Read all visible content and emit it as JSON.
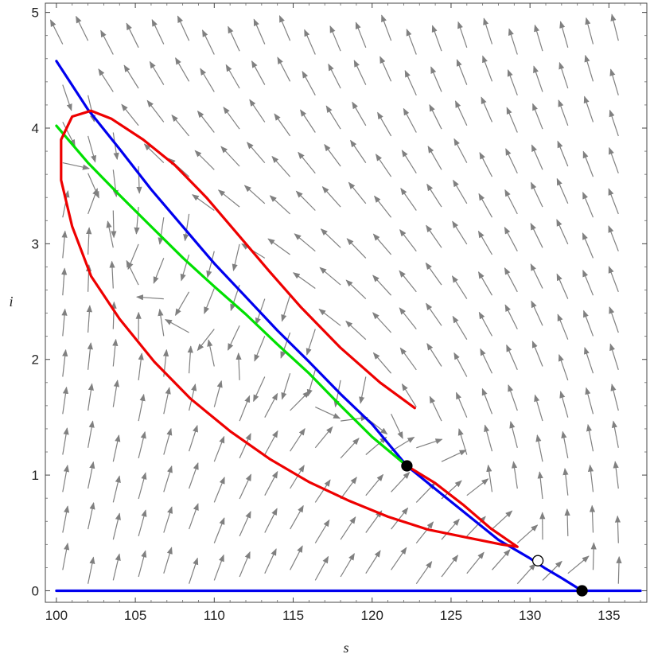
{
  "chart_data": {
    "type": "line",
    "title": "",
    "xlabel": "s",
    "ylabel": "i",
    "xlim": [
      99.3,
      137.4
    ],
    "ylim": [
      -0.1,
      5.08
    ],
    "x_ticks": [
      100,
      105,
      110,
      115,
      120,
      125,
      130,
      135
    ],
    "x_tick_labels": [
      "100",
      "105",
      "110",
      "115",
      "120",
      "125",
      "130",
      "135"
    ],
    "y_ticks": [
      0,
      1,
      2,
      3,
      4,
      5
    ],
    "y_tick_labels": [
      "0",
      "1",
      "2",
      "3",
      "4",
      "5"
    ],
    "grid": false,
    "legend": "none",
    "series": [
      {
        "kind": "curve",
        "color": "#0000ee",
        "points": [
          [
            100,
            4.58
          ],
          [
            102,
            4.16
          ],
          [
            104,
            3.82
          ],
          [
            106,
            3.47
          ],
          [
            108,
            3.15
          ],
          [
            110,
            2.83
          ],
          [
            112,
            2.54
          ],
          [
            114,
            2.25
          ],
          [
            116,
            1.98
          ],
          [
            118,
            1.7
          ],
          [
            120,
            1.44
          ],
          [
            122.2,
            1.08
          ],
          [
            124,
            0.88
          ],
          [
            126,
            0.66
          ],
          [
            128,
            0.44
          ],
          [
            130,
            0.28
          ],
          [
            131,
            0.19
          ],
          [
            132,
            0.11
          ],
          [
            133.3,
            0.0
          ]
        ]
      },
      {
        "kind": "curve",
        "color": "#0000ee",
        "points": [
          [
            100,
            0
          ],
          [
            137,
            0
          ]
        ]
      },
      {
        "kind": "curve",
        "color": "#00e000",
        "points": [
          [
            100,
            4.02
          ],
          [
            102,
            3.7
          ],
          [
            104,
            3.42
          ],
          [
            106,
            3.15
          ],
          [
            108,
            2.88
          ],
          [
            110,
            2.63
          ],
          [
            112,
            2.39
          ],
          [
            114,
            2.13
          ],
          [
            116,
            1.88
          ],
          [
            118,
            1.6
          ],
          [
            120,
            1.33
          ],
          [
            122.2,
            1.08
          ]
        ]
      },
      {
        "kind": "curve",
        "color": "#ee0000",
        "points": [
          [
            122.7,
            1.58
          ],
          [
            120.5,
            1.8
          ],
          [
            118,
            2.1
          ],
          [
            115.5,
            2.45
          ],
          [
            113.5,
            2.76
          ],
          [
            111.5,
            3.08
          ],
          [
            109.5,
            3.4
          ],
          [
            107.5,
            3.68
          ],
          [
            105.5,
            3.9
          ],
          [
            103.5,
            4.08
          ],
          [
            102.2,
            4.15
          ],
          [
            101,
            4.1
          ],
          [
            100.3,
            3.9
          ],
          [
            100.3,
            3.55
          ],
          [
            101,
            3.15
          ],
          [
            102.2,
            2.72
          ],
          [
            104,
            2.35
          ],
          [
            106.2,
            1.98
          ],
          [
            108.5,
            1.66
          ],
          [
            111,
            1.38
          ],
          [
            113.5,
            1.14
          ],
          [
            116,
            0.94
          ],
          [
            118.5,
            0.78
          ],
          [
            121,
            0.64
          ],
          [
            123.5,
            0.53
          ],
          [
            126,
            0.46
          ],
          [
            128.2,
            0.4
          ],
          [
            129.2,
            0.38
          ],
          [
            127.5,
            0.54
          ],
          [
            125.8,
            0.74
          ],
          [
            124,
            0.93
          ],
          [
            122.2,
            1.08
          ]
        ]
      }
    ],
    "points": [
      {
        "x": 122.2,
        "y": 1.08,
        "fill": "#000000"
      },
      {
        "x": 130.5,
        "y": 0.26,
        "fill": "#ffffff"
      },
      {
        "x": 133.3,
        "y": 0.0,
        "fill": "#000000"
      }
    ],
    "vector_field": {
      "color": "#808080",
      "s_range": [
        100,
        137
      ],
      "i_range": [
        0,
        5
      ],
      "s_step": 1.6,
      "i_step": 0.22
    }
  }
}
